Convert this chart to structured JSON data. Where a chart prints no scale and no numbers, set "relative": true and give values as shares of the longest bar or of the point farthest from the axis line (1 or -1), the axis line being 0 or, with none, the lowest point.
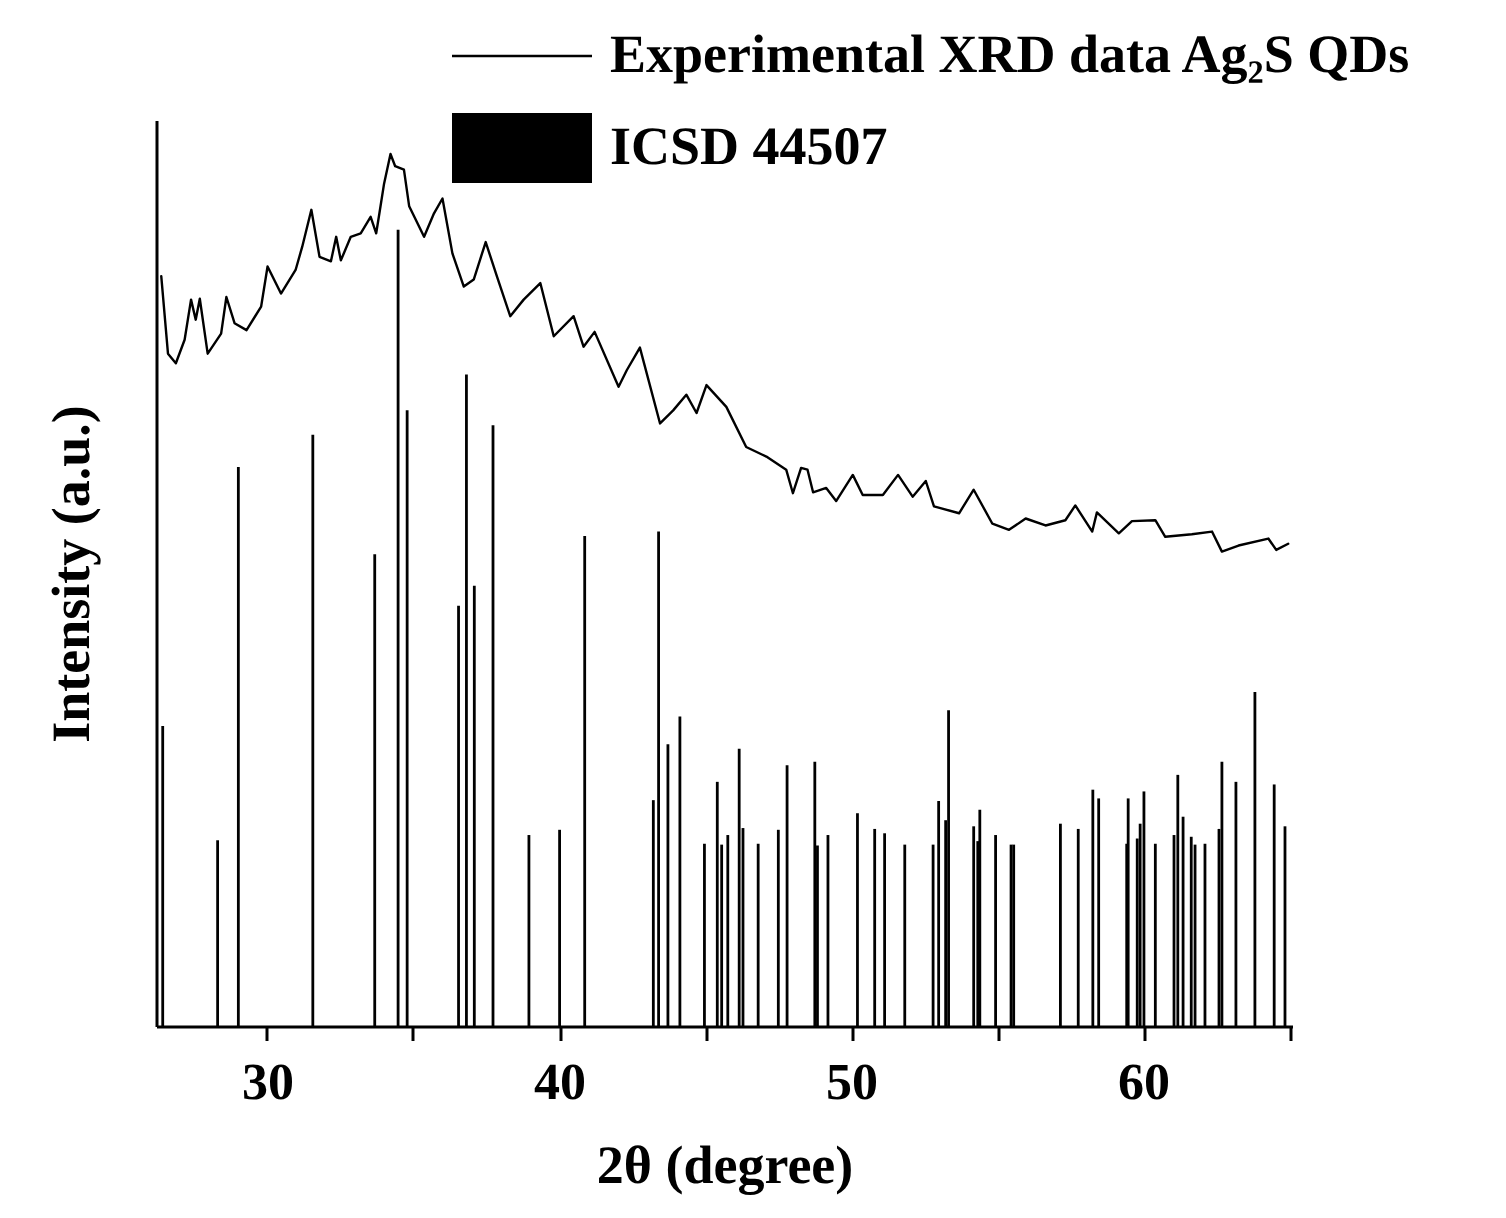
{
  "chart_data": {
    "type": "line",
    "relative": true,
    "xlabel": "2θ (degree)",
    "ylabel": "Intensity (a.u.)",
    "legend": "top right",
    "xlim": [
      26.2,
      65.1
    ],
    "xticks": [
      30,
      {
        "value": 35,
        "label": null
      },
      40,
      {
        "value": 45,
        "label": null
      },
      50,
      {
        "value": 55,
        "label": null
      },
      60,
      {
        "value": 65,
        "label": null
      }
    ],
    "series": [
      {
        "name": "Experimental XRD data Ag₂S QDs",
        "color": "#000000",
        "x": [
          26.38,
          26.61,
          26.88,
          27.18,
          27.4,
          27.56,
          27.7,
          27.97,
          28.43,
          28.61,
          28.89,
          29.3,
          29.8,
          30.02,
          30.48,
          30.98,
          31.21,
          31.52,
          31.8,
          32.19,
          32.37,
          32.53,
          32.87,
          33.21,
          33.55,
          33.74,
          33.85,
          34.01,
          34.23,
          34.39,
          34.69,
          34.87,
          35.38,
          35.72,
          36.01,
          36.35,
          36.74,
          37.08,
          37.49,
          37.88,
          38.33,
          38.79,
          39.36,
          39.82,
          40.5,
          40.84,
          41.22,
          42.04,
          42.32,
          42.77,
          43.46,
          43.91,
          44.36,
          44.71,
          45.05,
          45.73,
          46.41,
          47.1,
          47.78,
          48.01,
          48.29,
          48.51,
          48.7,
          49.15,
          49.49,
          50.06,
          50.4,
          51.09,
          51.61,
          52.11,
          52.56,
          52.84,
          53.7,
          54.2,
          54.84,
          55.41,
          55.98,
          56.66,
          57.34,
          57.68,
          58.26,
          58.42,
          59.17,
          59.62,
          60.42,
          60.76,
          61.67,
          62.36,
          62.7,
          63.27,
          64.29,
          64.56,
          64.97
        ],
        "values": [
          0.86,
          0.771,
          0.76,
          0.787,
          0.833,
          0.81,
          0.834,
          0.771,
          0.794,
          0.836,
          0.806,
          0.798,
          0.825,
          0.871,
          0.84,
          0.867,
          0.894,
          0.936,
          0.882,
          0.877,
          0.905,
          0.878,
          0.905,
          0.909,
          0.928,
          0.909,
          0.932,
          0.966,
          1.0,
          0.986,
          0.982,
          0.94,
          0.905,
          0.932,
          0.949,
          0.886,
          0.848,
          0.856,
          0.899,
          0.859,
          0.814,
          0.833,
          0.852,
          0.791,
          0.814,
          0.779,
          0.796,
          0.733,
          0.752,
          0.778,
          0.691,
          0.706,
          0.724,
          0.703,
          0.735,
          0.71,
          0.664,
          0.653,
          0.638,
          0.611,
          0.64,
          0.638,
          0.612,
          0.617,
          0.602,
          0.632,
          0.609,
          0.609,
          0.632,
          0.607,
          0.625,
          0.596,
          0.588,
          0.615,
          0.576,
          0.569,
          0.582,
          0.574,
          0.58,
          0.597,
          0.567,
          0.589,
          0.565,
          0.579,
          0.58,
          0.561,
          0.564,
          0.567,
          0.544,
          0.551,
          0.559,
          0.546,
          0.553
        ]
      },
      {
        "name": "ICSD 44507",
        "type": "bar",
        "color": "#000000",
        "x": [
          26.43,
          28.31,
          29.02,
          31.57,
          33.69,
          34.49,
          34.8,
          36.56,
          36.83,
          37.1,
          37.74,
          38.97,
          40.02,
          40.88,
          43.23,
          43.41,
          43.73,
          44.14,
          44.98,
          45.42,
          45.57,
          45.78,
          46.17,
          46.3,
          46.82,
          47.51,
          47.81,
          48.76,
          48.85,
          49.21,
          50.22,
          50.81,
          51.15,
          51.84,
          52.81,
          53.0,
          53.24,
          53.29,
          53.34,
          54.2,
          54.34,
          54.41,
          54.95,
          55.48,
          55.57,
          57.17,
          57.78,
          58.28,
          58.48,
          59.44,
          59.49,
          59.8,
          59.9,
          60.03,
          60.42,
          61.06,
          61.19,
          61.37,
          61.65,
          61.78,
          62.12,
          62.6,
          62.7,
          63.18,
          63.83,
          64.49,
          64.86
        ],
        "values": [
          0.344,
          0.213,
          0.641,
          0.678,
          0.541,
          0.913,
          0.706,
          0.482,
          0.747,
          0.505,
          0.689,
          0.219,
          0.225,
          0.562,
          0.259,
          0.567,
          0.323,
          0.355,
          0.209,
          0.28,
          0.208,
          0.219,
          0.318,
          0.227,
          0.209,
          0.225,
          0.299,
          0.303,
          0.207,
          0.219,
          0.244,
          0.226,
          0.221,
          0.208,
          0.208,
          0.258,
          0.236,
          null,
          0.362,
          0.229,
          0.212,
          0.248,
          0.219,
          0.208,
          0.208,
          0.232,
          0.226,
          0.271,
          0.261,
          0.209,
          0.261,
          0.215,
          0.232,
          0.269,
          0.209,
          0.219,
          0.288,
          0.24,
          0.217,
          0.208,
          0.209,
          0.226,
          0.303,
          0.28,
          0.383,
          0.277,
          0.229
        ]
      }
    ]
  }
}
